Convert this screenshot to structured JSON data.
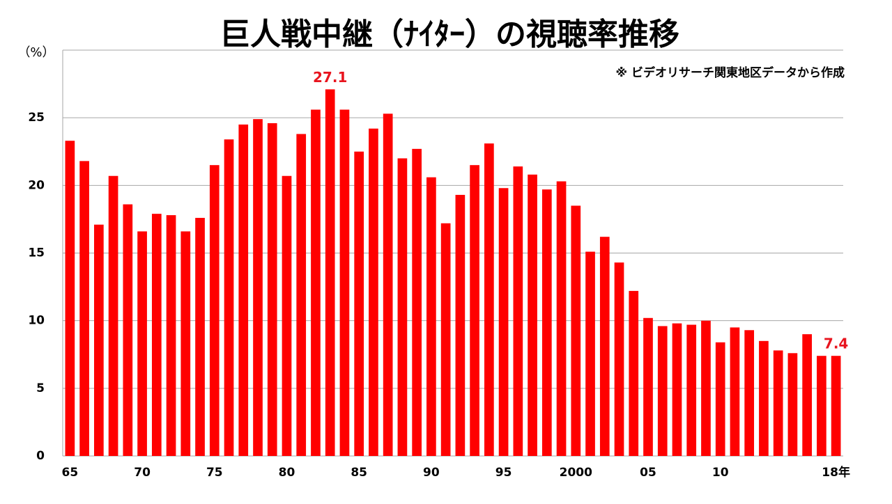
{
  "chart_data": {
    "type": "bar",
    "title": "巨人戦中継（ﾅｲﾀｰ）の視聴率推移",
    "note": "※ ビデオリサーチ関東地区データから作成",
    "y_label": "（%）",
    "categories": [
      "65",
      null,
      null,
      null,
      null,
      "70",
      null,
      null,
      null,
      null,
      "75",
      null,
      null,
      null,
      null,
      "80",
      null,
      null,
      null,
      null,
      "85",
      null,
      null,
      null,
      null,
      "90",
      null,
      null,
      null,
      null,
      "95",
      null,
      null,
      null,
      null,
      "2000",
      null,
      null,
      null,
      null,
      "05",
      null,
      null,
      null,
      null,
      "10",
      null,
      null,
      null,
      null,
      null,
      null,
      null,
      "18年"
    ],
    "values": [
      23.3,
      21.8,
      17.1,
      20.7,
      18.6,
      16.6,
      17.9,
      17.8,
      16.6,
      17.6,
      21.5,
      23.4,
      24.5,
      24.9,
      24.6,
      20.7,
      23.8,
      25.6,
      27.1,
      25.6,
      22.5,
      24.2,
      25.3,
      22.0,
      22.7,
      20.6,
      17.2,
      19.3,
      21.5,
      23.1,
      19.8,
      21.4,
      20.8,
      19.7,
      20.3,
      18.5,
      15.1,
      16.2,
      14.3,
      12.2,
      10.2,
      9.6,
      9.8,
      9.7,
      10.0,
      8.4,
      9.5,
      9.3,
      8.5,
      7.8,
      7.6,
      9.0,
      7.4,
      7.4
    ],
    "value_labels": [
      null,
      null,
      null,
      null,
      null,
      null,
      null,
      null,
      null,
      null,
      null,
      null,
      null,
      null,
      null,
      null,
      null,
      null,
      "27.1",
      null,
      null,
      null,
      null,
      null,
      null,
      null,
      null,
      null,
      null,
      null,
      null,
      null,
      null,
      null,
      null,
      null,
      null,
      null,
      null,
      null,
      null,
      null,
      null,
      null,
      null,
      null,
      null,
      null,
      null,
      null,
      null,
      null,
      null,
      "7.4"
    ],
    "color": "#ff0000",
    "label_color": "#e8141e",
    "ylim": [
      0,
      30
    ],
    "yticks": [
      0,
      5,
      10,
      15,
      20,
      25
    ],
    "grid": true
  }
}
